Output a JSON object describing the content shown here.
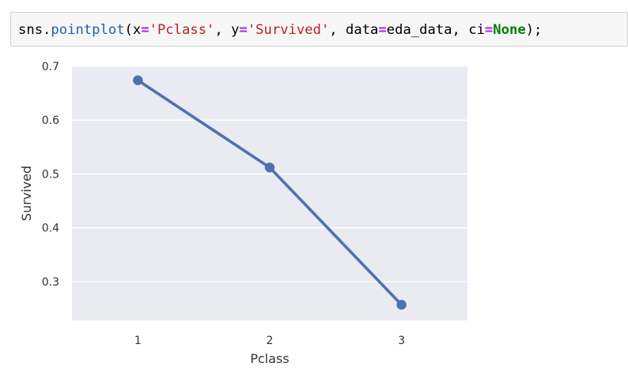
{
  "code_cell": {
    "tokens": [
      {
        "text": "sns.",
        "kind": "plain"
      },
      {
        "text": "pointplot",
        "kind": "fn"
      },
      {
        "text": "(x",
        "kind": "plain"
      },
      {
        "text": "=",
        "kind": "op"
      },
      {
        "text": "'Pclass'",
        "kind": "str"
      },
      {
        "text": ", y",
        "kind": "plain"
      },
      {
        "text": "=",
        "kind": "op"
      },
      {
        "text": "'Survived'",
        "kind": "str"
      },
      {
        "text": ", data",
        "kind": "plain"
      },
      {
        "text": "=",
        "kind": "op"
      },
      {
        "text": "eda_data, ci",
        "kind": "plain"
      },
      {
        "text": "=",
        "kind": "op"
      },
      {
        "text": "None",
        "kind": "kw"
      },
      {
        "text": ");",
        "kind": "plain"
      }
    ]
  },
  "chart_data": {
    "type": "line",
    "style": "pointplot",
    "categories": [
      "1",
      "2",
      "3"
    ],
    "series": [
      {
        "values": [
          0.674,
          0.512,
          0.257
        ],
        "color": "#4c72b0"
      }
    ],
    "xlabel": "Pclass",
    "ylabel": "Survived",
    "ylim": [
      0.228,
      0.7
    ],
    "yticks": [
      0.3,
      0.4,
      0.5,
      0.6,
      0.7
    ],
    "ytick_labels": [
      "0.3",
      "0.4",
      "0.5",
      "0.6",
      "0.7"
    ],
    "grid": true,
    "background": "#eaeaf2",
    "grid_color": "#ffffff"
  }
}
